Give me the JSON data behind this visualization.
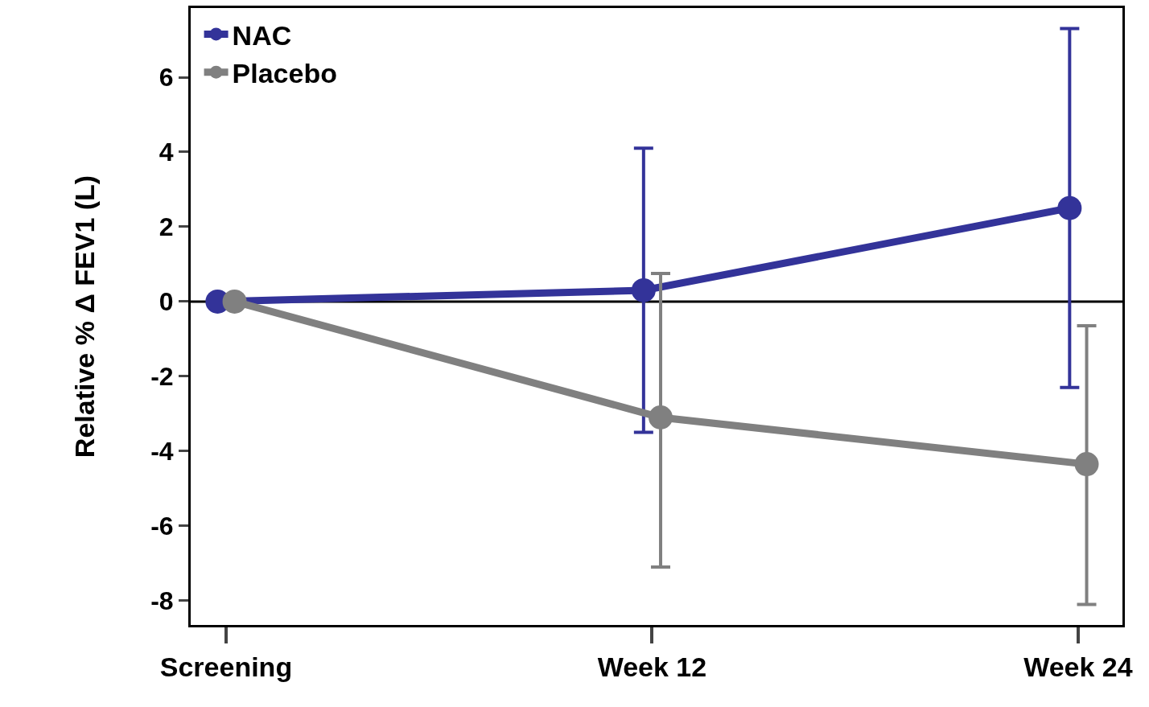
{
  "chart_data": {
    "type": "line",
    "ylabel": "Relative % Δ FEV1 (L)",
    "categories": [
      "Screening",
      "Week 12",
      "Week 24"
    ],
    "series": [
      {
        "name": "NAC",
        "color": "#333399",
        "values": [
          0,
          0.3,
          2.5
        ],
        "errors": [
          null,
          [
            -3.5,
            4.1
          ],
          [
            -2.3,
            7.3
          ]
        ]
      },
      {
        "name": "Placebo",
        "color": "#808080",
        "values": [
          0,
          -3.1,
          -4.35
        ],
        "errors": [
          null,
          [
            -7.1,
            0.75
          ],
          [
            -8.1,
            -0.65
          ]
        ]
      }
    ],
    "ylim": [
      -8.65,
      7.85
    ],
    "yticks": [
      -8,
      -6,
      -4,
      -2,
      0,
      2,
      4,
      6
    ],
    "grid": false,
    "legend": "top left",
    "marker": "circle",
    "line_style": "solid",
    "ref_lines": [
      {
        "axis": "y",
        "value": 0,
        "label": null,
        "color": "#000000"
      }
    ]
  }
}
